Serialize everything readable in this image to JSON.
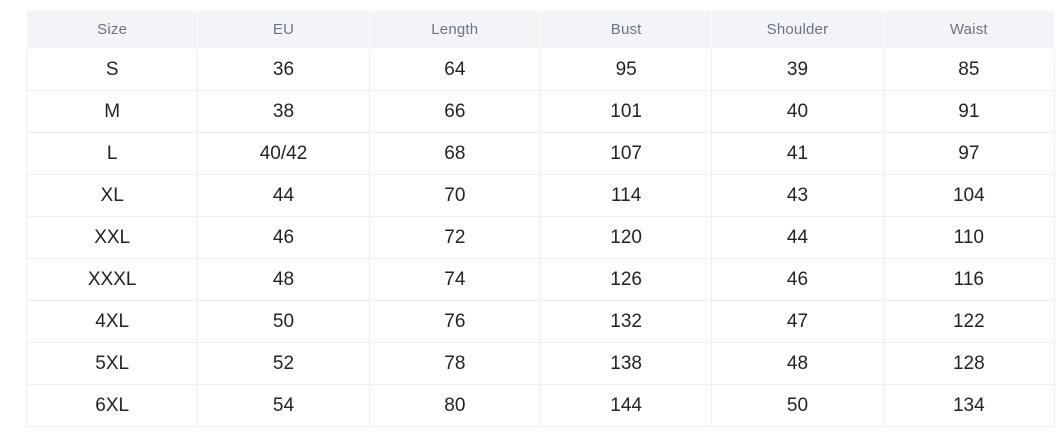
{
  "table": {
    "columns": [
      "Size",
      "EU",
      "Length",
      "Bust",
      "Shoulder",
      "Waist"
    ],
    "rows": [
      [
        "S",
        "36",
        "64",
        "95",
        "39",
        "85"
      ],
      [
        "M",
        "38",
        "66",
        "101",
        "40",
        "91"
      ],
      [
        "L",
        "40/42",
        "68",
        "107",
        "41",
        "97"
      ],
      [
        "XL",
        "44",
        "70",
        "114",
        "43",
        "104"
      ],
      [
        "XXL",
        "46",
        "72",
        "120",
        "44",
        "110"
      ],
      [
        "XXXL",
        "48",
        "74",
        "126",
        "46",
        "116"
      ],
      [
        "4XL",
        "50",
        "76",
        "132",
        "47",
        "122"
      ],
      [
        "5XL",
        "52",
        "78",
        "138",
        "48",
        "128"
      ],
      [
        "6XL",
        "54",
        "80",
        "144",
        "50",
        "134"
      ]
    ]
  },
  "colors": {
    "header_bg": "#f2f4f7",
    "header_text": "#6b7480",
    "body_text": "#1f2227",
    "border": "#edeff3",
    "page_bg": "#ffffff"
  }
}
